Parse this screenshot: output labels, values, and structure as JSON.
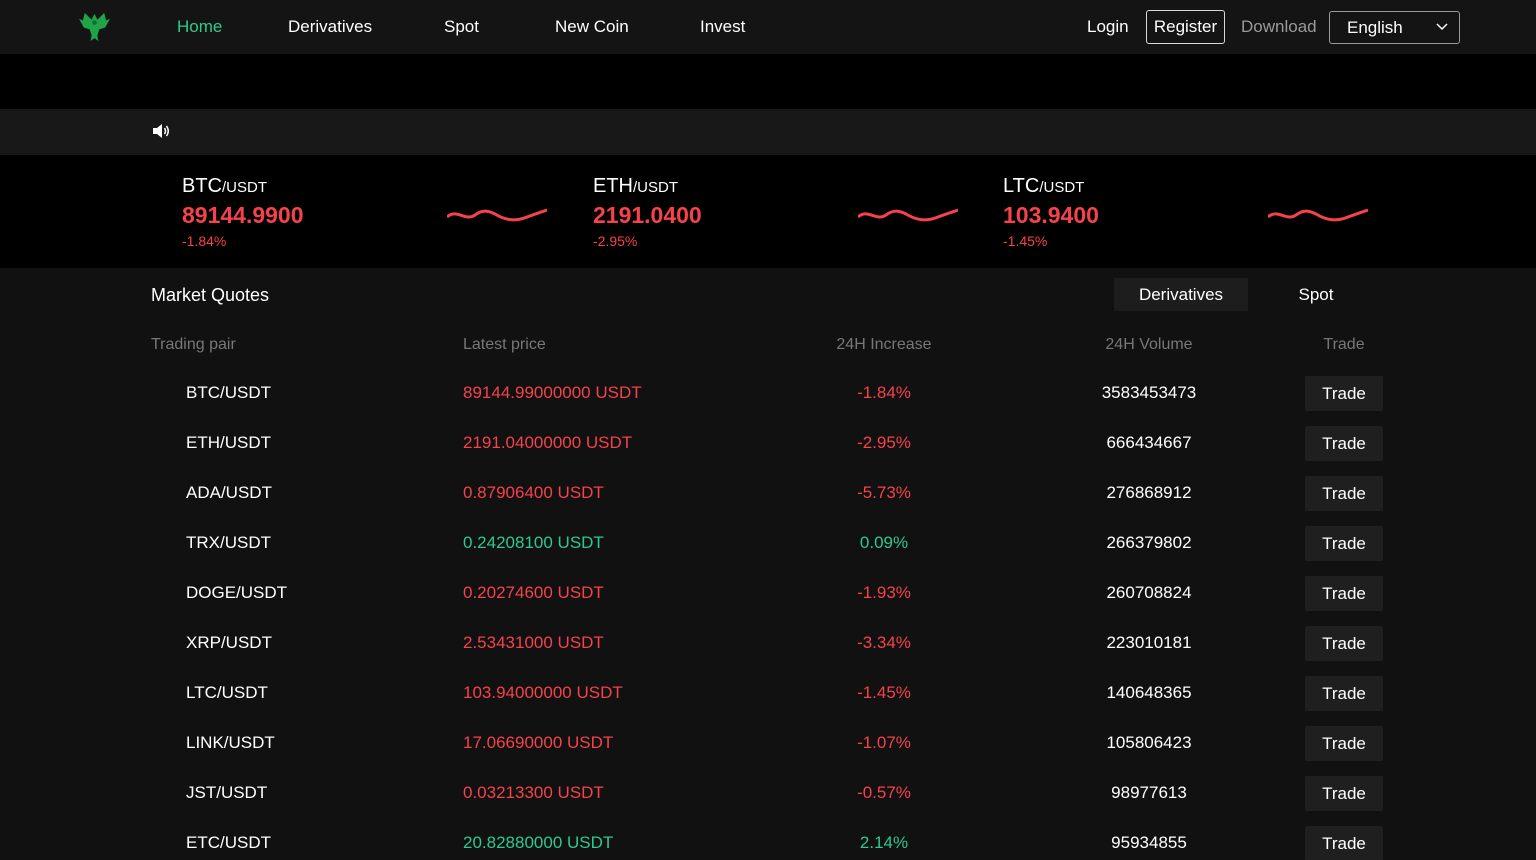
{
  "colors": {
    "accent": "#2ecc8a",
    "up": "#2ec98e",
    "down": "#f5424b",
    "background": "#111111"
  },
  "nav": {
    "logo_icon": "phoenix-logo-icon",
    "links": [
      "Home",
      "Derivatives",
      "Spot",
      "New Coin",
      "Invest"
    ],
    "active": "Home",
    "login": "Login",
    "register": "Register",
    "download": "Download",
    "language": "English"
  },
  "notice": {
    "icon": "speaker-icon"
  },
  "tickers": [
    {
      "base": "BTC",
      "quote": "/USDT",
      "price": "89144.9900",
      "change": "-1.84%"
    },
    {
      "base": "ETH",
      "quote": "/USDT",
      "price": "2191.0400",
      "change": "-2.95%"
    },
    {
      "base": "LTC",
      "quote": "/USDT",
      "price": "103.9400",
      "change": "-1.45%"
    }
  ],
  "market": {
    "title": "Market Quotes",
    "tabs": [
      "Derivatives",
      "Spot"
    ],
    "active_tab": "Derivatives",
    "columns": [
      "Trading pair",
      "Latest price",
      "24H Increase",
      "24H Volume",
      "Trade"
    ],
    "rows": [
      {
        "pair": "BTC/USDT",
        "price": "89144.99000000 USDT",
        "change": "-1.84%",
        "volume": "3583453473",
        "trade": "Trade",
        "dir": "down"
      },
      {
        "pair": "ETH/USDT",
        "price": "2191.04000000 USDT",
        "change": "-2.95%",
        "volume": "666434667",
        "trade": "Trade",
        "dir": "down"
      },
      {
        "pair": "ADA/USDT",
        "price": "0.87906400 USDT",
        "change": "-5.73%",
        "volume": "276868912",
        "trade": "Trade",
        "dir": "down"
      },
      {
        "pair": "TRX/USDT",
        "price": "0.24208100 USDT",
        "change": "0.09%",
        "volume": "266379802",
        "trade": "Trade",
        "dir": "up"
      },
      {
        "pair": "DOGE/USDT",
        "price": "0.20274600 USDT",
        "change": "-1.93%",
        "volume": "260708824",
        "trade": "Trade",
        "dir": "down"
      },
      {
        "pair": "XRP/USDT",
        "price": "2.53431000 USDT",
        "change": "-3.34%",
        "volume": "223010181",
        "trade": "Trade",
        "dir": "down"
      },
      {
        "pair": "LTC/USDT",
        "price": "103.94000000 USDT",
        "change": "-1.45%",
        "volume": "140648365",
        "trade": "Trade",
        "dir": "down"
      },
      {
        "pair": "LINK/USDT",
        "price": "17.06690000 USDT",
        "change": "-1.07%",
        "volume": "105806423",
        "trade": "Trade",
        "dir": "down"
      },
      {
        "pair": "JST/USDT",
        "price": "0.03213300 USDT",
        "change": "-0.57%",
        "volume": "98977613",
        "trade": "Trade",
        "dir": "down"
      },
      {
        "pair": "ETC/USDT",
        "price": "20.82880000 USDT",
        "change": "2.14%",
        "volume": "95934855",
        "trade": "Trade",
        "dir": "up"
      }
    ]
  }
}
